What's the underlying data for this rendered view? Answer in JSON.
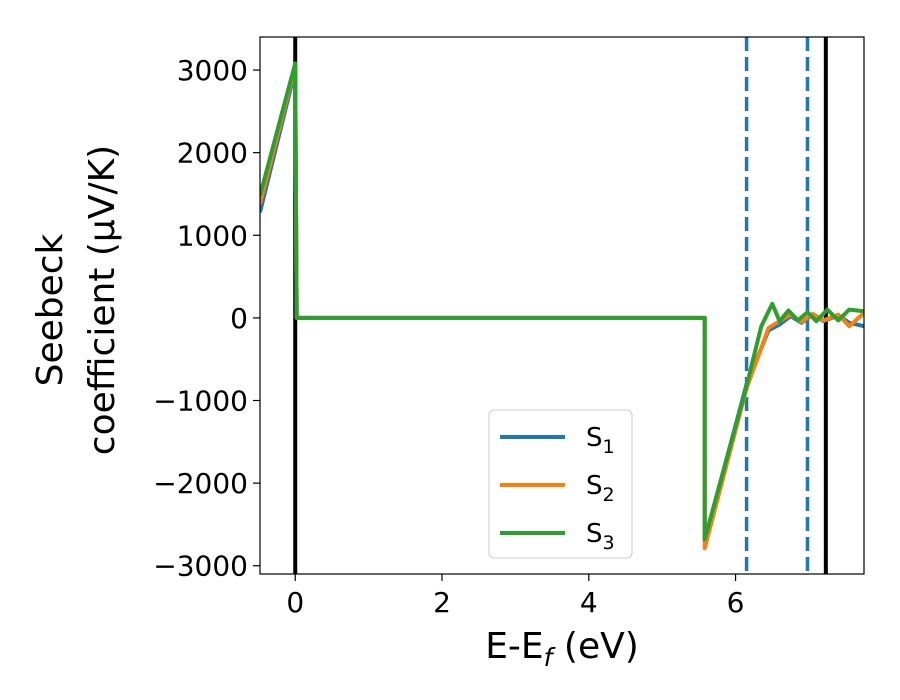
{
  "chart_data": {
    "type": "line",
    "xlabel": "E-E_f (eV)",
    "xlabel_parts": {
      "main": "E-E",
      "sub": "f",
      "tail": " (eV)"
    },
    "ylabel_lines": [
      "Seebeck",
      "coefficient  (μV/K)"
    ],
    "xlim": [
      -0.48,
      7.75
    ],
    "ylim": [
      -3100,
      3400
    ],
    "xticks": [
      0,
      2,
      4,
      6
    ],
    "xtick_labels": [
      "0",
      "2",
      "4",
      "6"
    ],
    "yticks": [
      -3000,
      -2000,
      -1000,
      0,
      1000,
      2000,
      3000
    ],
    "ytick_labels": [
      "−3000",
      "−2000",
      "−1000",
      "0",
      "1000",
      "2000",
      "3000"
    ],
    "legend_position": "lower-center",
    "vertical_lines": [
      {
        "x": 0.0,
        "style": "solid",
        "color": "#000000"
      },
      {
        "x": 7.23,
        "style": "solid",
        "color": "#000000"
      },
      {
        "x": 6.15,
        "style": "dashed",
        "color": "#1f77b4"
      },
      {
        "x": 6.98,
        "style": "dashed",
        "color": "#1f77b4"
      }
    ],
    "series": [
      {
        "name": "S_1",
        "label_main": "S",
        "label_sub": "1",
        "color": "#1f77b4",
        "points": [
          [
            -0.48,
            1280
          ],
          [
            0.0,
            3000
          ],
          [
            0.02,
            0
          ],
          [
            5.58,
            0
          ],
          [
            5.58,
            -2700
          ],
          [
            6.15,
            -800
          ],
          [
            6.45,
            -150
          ],
          [
            6.6,
            -80
          ],
          [
            6.75,
            20
          ],
          [
            6.9,
            -60
          ],
          [
            7.05,
            40
          ],
          [
            7.2,
            -40
          ],
          [
            7.4,
            30
          ],
          [
            7.55,
            -60
          ],
          [
            7.75,
            -100
          ]
        ]
      },
      {
        "name": "S_2",
        "label_main": "S",
        "label_sub": "2",
        "color": "#ff7f0e",
        "points": [
          [
            -0.48,
            1380
          ],
          [
            0.0,
            3050
          ],
          [
            0.02,
            0
          ],
          [
            5.58,
            0
          ],
          [
            5.58,
            -2790
          ],
          [
            6.15,
            -850
          ],
          [
            6.45,
            -120
          ],
          [
            6.6,
            -40
          ],
          [
            6.75,
            40
          ],
          [
            6.9,
            -50
          ],
          [
            7.05,
            50
          ],
          [
            7.2,
            -30
          ],
          [
            7.4,
            40
          ],
          [
            7.55,
            -100
          ],
          [
            7.75,
            60
          ]
        ]
      },
      {
        "name": "S_3",
        "label_main": "S",
        "label_sub": "3",
        "color": "#2ca02c",
        "points": [
          [
            -0.48,
            1480
          ],
          [
            0.0,
            3080
          ],
          [
            0.02,
            0
          ],
          [
            5.58,
            0
          ],
          [
            5.58,
            -2680
          ],
          [
            6.15,
            -820
          ],
          [
            6.35,
            -100
          ],
          [
            6.5,
            170
          ],
          [
            6.6,
            -40
          ],
          [
            6.72,
            90
          ],
          [
            6.85,
            -30
          ],
          [
            6.98,
            70
          ],
          [
            7.1,
            -40
          ],
          [
            7.25,
            100
          ],
          [
            7.4,
            -30
          ],
          [
            7.55,
            100
          ],
          [
            7.75,
            80
          ]
        ]
      }
    ]
  }
}
